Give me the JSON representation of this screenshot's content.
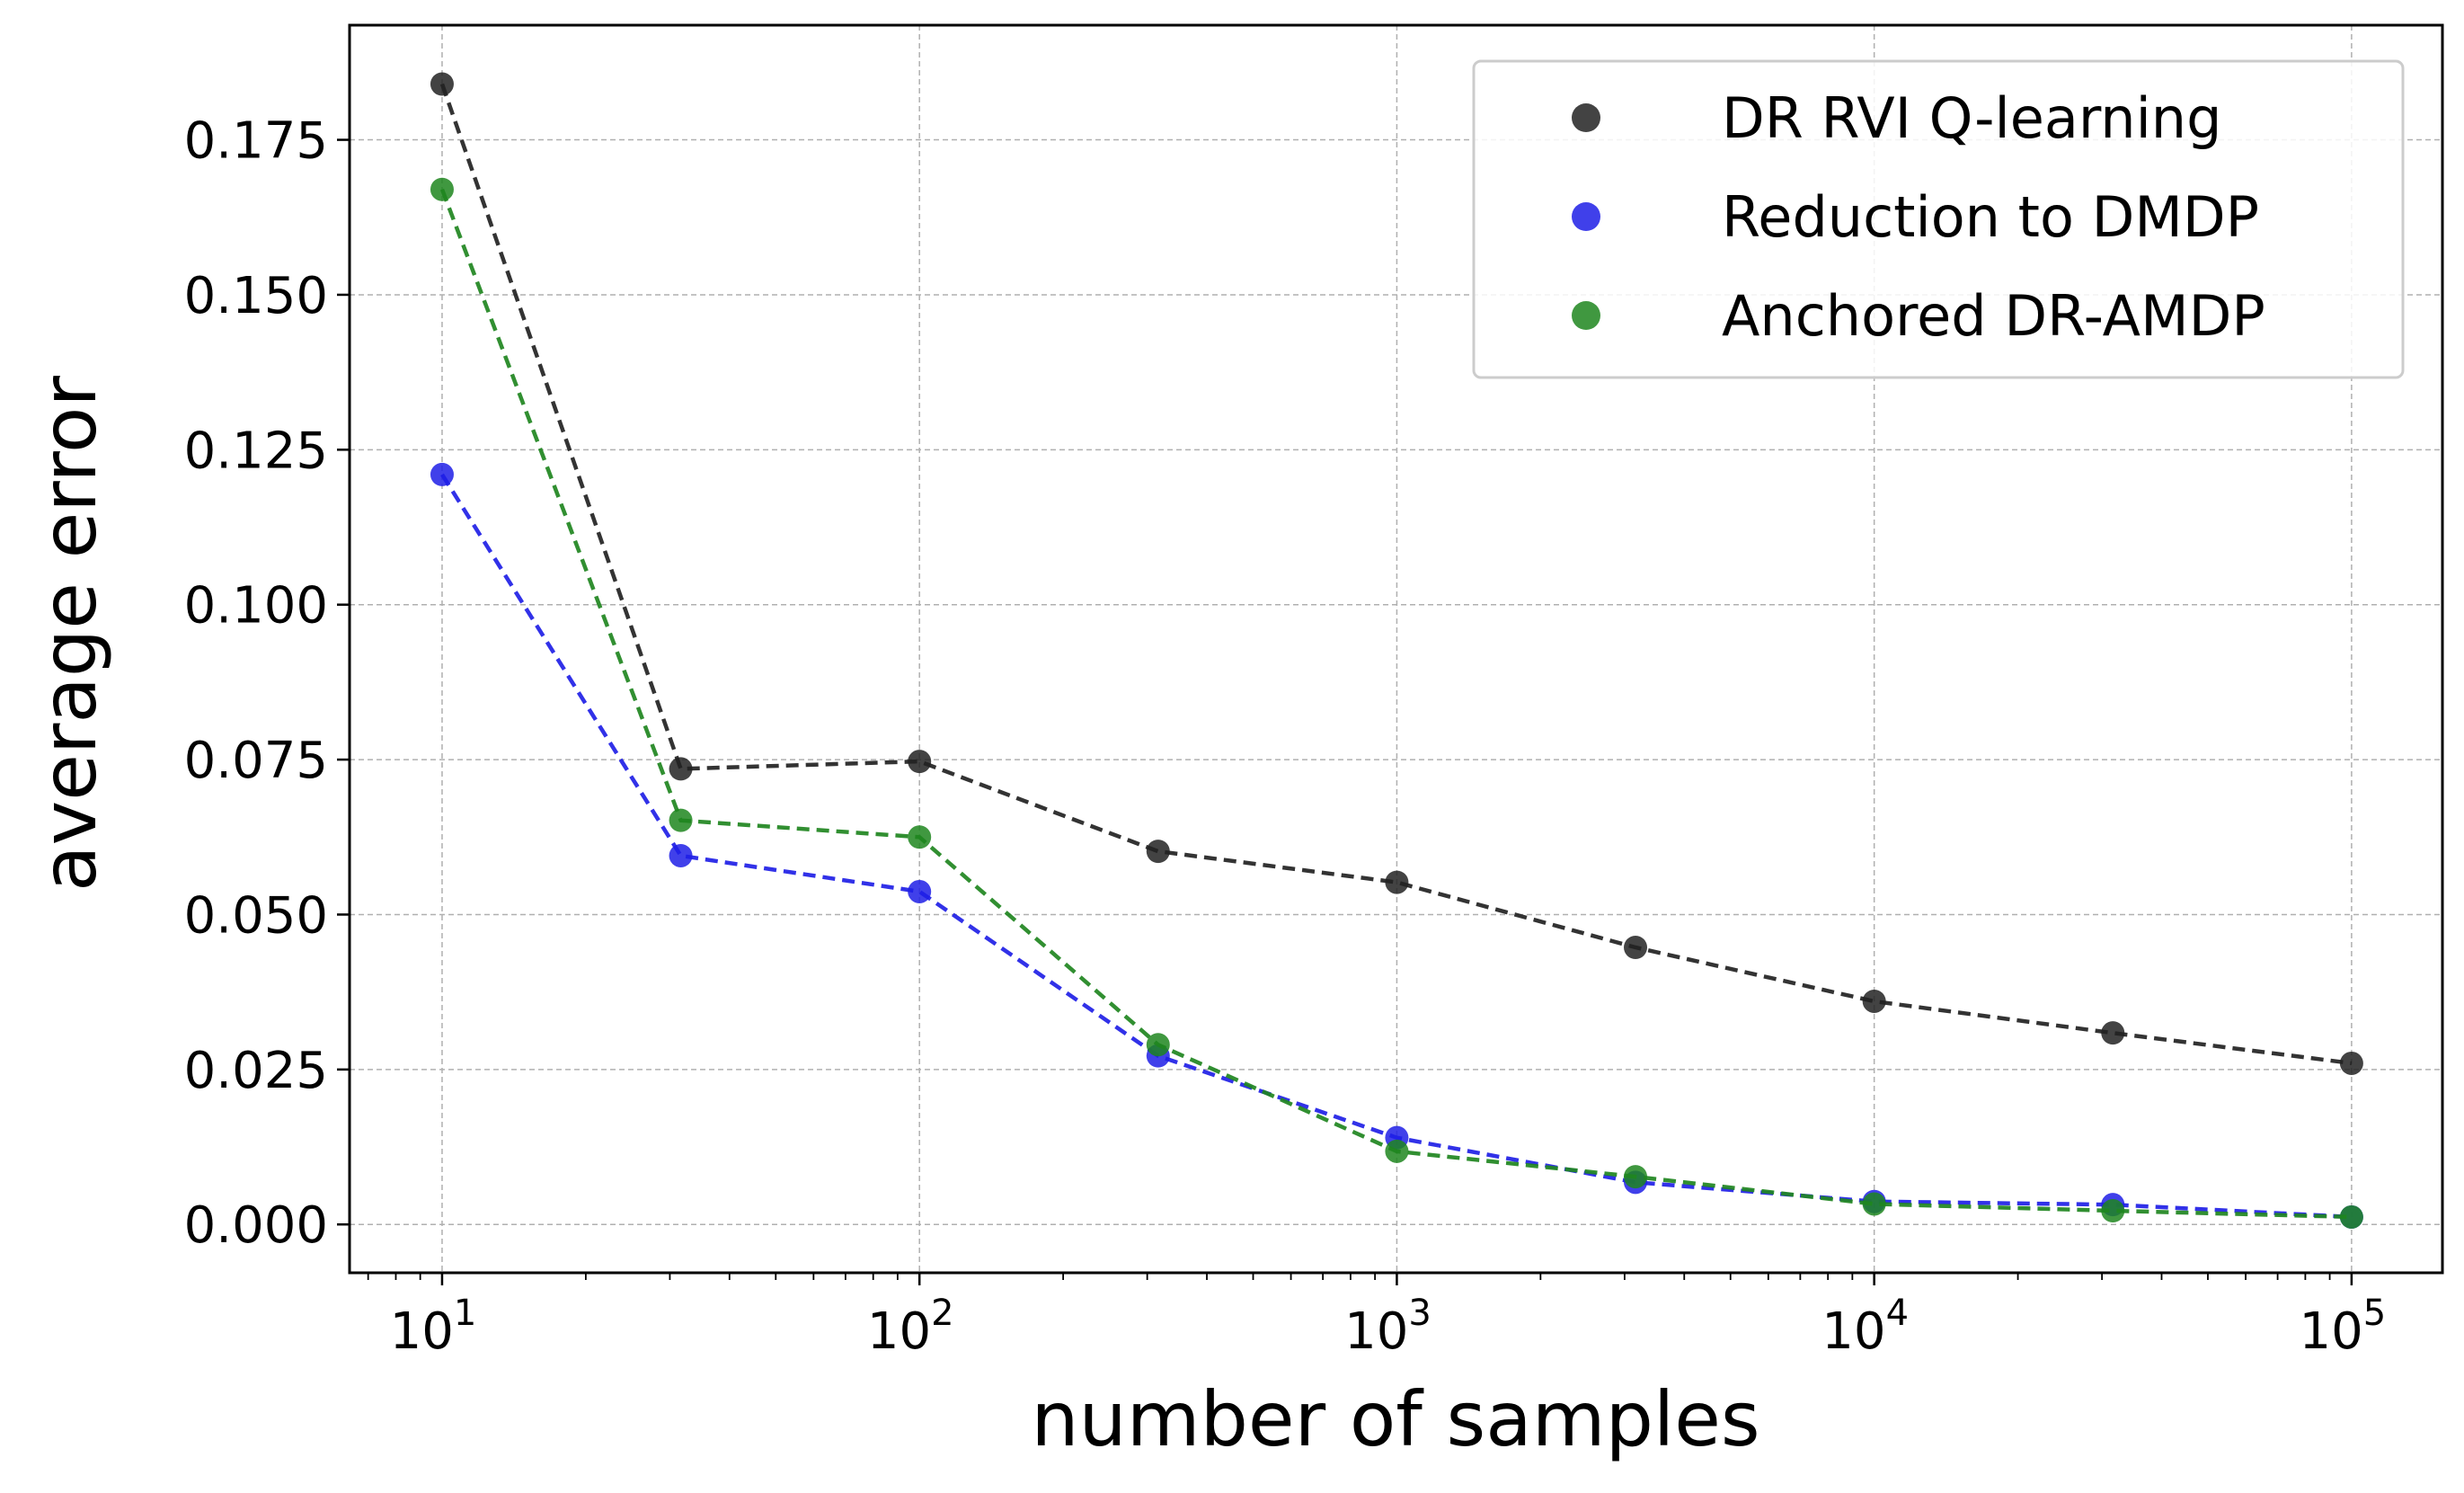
{
  "chart_data": {
    "type": "line",
    "xscale": "log",
    "title": "",
    "xlabel": "number of samples",
    "ylabel": "average error",
    "xlim": [
      6.4,
      155000
    ],
    "ylim": [
      -0.0078,
      0.1935
    ],
    "grid": true,
    "legend_position": "top-right",
    "x": [
      10,
      31.62,
      100,
      316.2,
      1000,
      3162,
      10000,
      31620,
      100000
    ],
    "x_ticks": [
      {
        "value": 10,
        "base": "10",
        "exp": "1"
      },
      {
        "value": 100,
        "base": "10",
        "exp": "2"
      },
      {
        "value": 1000,
        "base": "10",
        "exp": "3"
      },
      {
        "value": 10000,
        "base": "10",
        "exp": "4"
      },
      {
        "value": 100000,
        "base": "10",
        "exp": "5"
      }
    ],
    "y_ticks": [
      {
        "value": 0.0,
        "label": "0.000"
      },
      {
        "value": 0.025,
        "label": "0.025"
      },
      {
        "value": 0.05,
        "label": "0.050"
      },
      {
        "value": 0.075,
        "label": "0.075"
      },
      {
        "value": 0.1,
        "label": "0.100"
      },
      {
        "value": 0.125,
        "label": "0.125"
      },
      {
        "value": 0.15,
        "label": "0.150"
      },
      {
        "value": 0.175,
        "label": "0.175"
      }
    ],
    "series": [
      {
        "name": "DR RVI Q-learning",
        "color": "#222222",
        "values": [
          0.184,
          0.0735,
          0.0747,
          0.0602,
          0.0552,
          0.0447,
          0.036,
          0.0309,
          0.026
        ]
      },
      {
        "name": "Reduction to DMDP",
        "color": "#1f1fe6",
        "values": [
          0.121,
          0.0595,
          0.0537,
          0.0272,
          0.014,
          0.0068,
          0.0037,
          0.0032,
          0.0012
        ]
      },
      {
        "name": "Anchored DR-AMDP",
        "color": "#1f861f",
        "values": [
          0.167,
          0.0652,
          0.0625,
          0.029,
          0.0118,
          0.0077,
          0.0033,
          0.0022,
          0.0012
        ]
      }
    ]
  }
}
